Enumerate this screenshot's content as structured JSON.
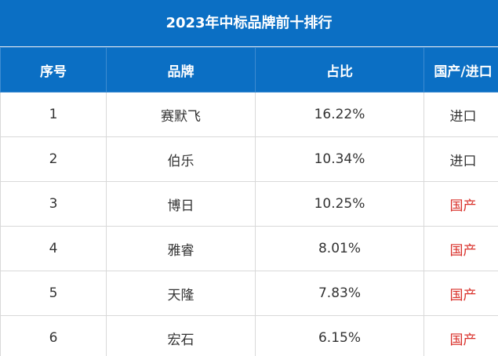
{
  "table": {
    "title": "2023年中标品牌前十排行",
    "header": [
      "序号",
      "品牌",
      "占比",
      "国产/进口"
    ],
    "rows": [
      [
        "1",
        "赛默飞",
        "16.22%",
        "进口"
      ],
      [
        "2",
        "伯乐",
        "10.34%",
        "进口"
      ],
      [
        "3",
        "博日",
        "10.25%",
        "国产"
      ],
      [
        "4",
        "雅睿",
        "8.01%",
        "国产"
      ],
      [
        "5",
        "天隆",
        "7.83%",
        "国产"
      ],
      [
        "6",
        "宏石",
        "6.15%",
        "国产"
      ]
    ],
    "origin_colors": [
      "#333333",
      "#333333",
      "#d9302a",
      "#d9302a",
      "#d9302a",
      "#d9302a"
    ]
  }
}
